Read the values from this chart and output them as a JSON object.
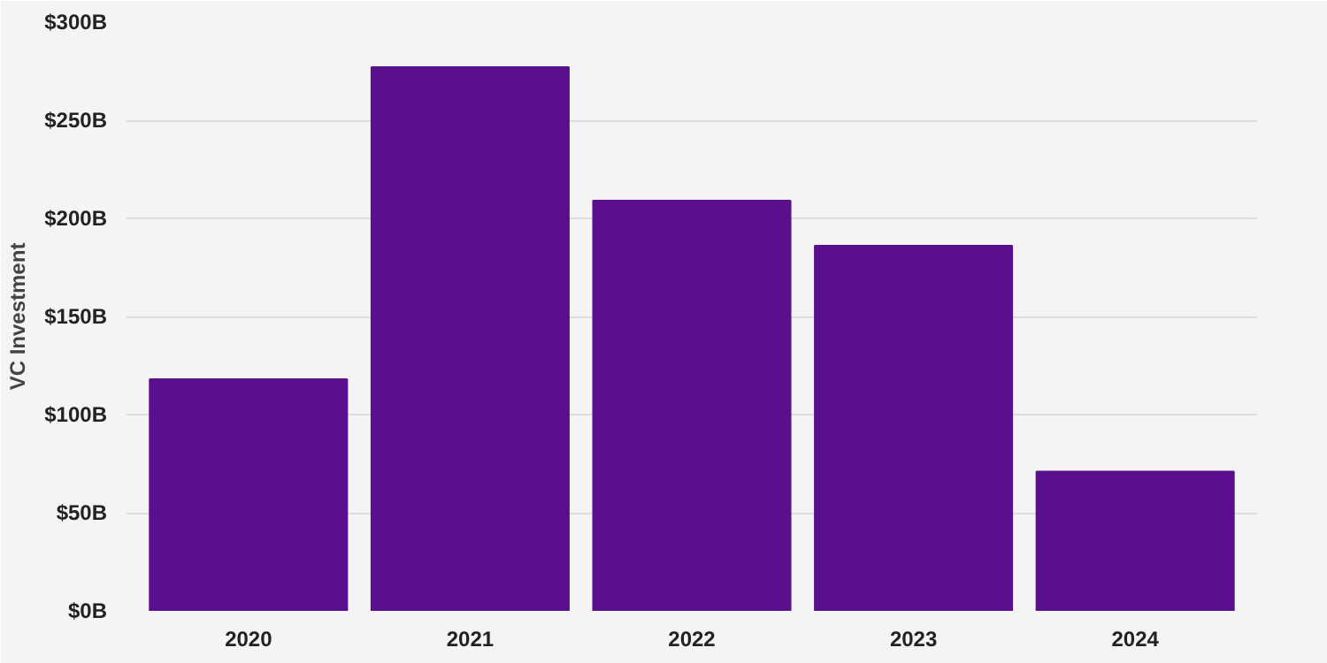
{
  "chart_data": {
    "type": "bar",
    "ylabel": "VC Investment",
    "categories": [
      "2020",
      "2021",
      "2022",
      "2023",
      "2024"
    ],
    "values": [
      118,
      277,
      209,
      186,
      71
    ],
    "color": "#5a0f8c",
    "ylim": [
      0,
      300
    ],
    "yticks": [
      {
        "value": 0,
        "label": "$0B"
      },
      {
        "value": 50,
        "label": "$50B"
      },
      {
        "value": 100,
        "label": "$100B"
      },
      {
        "value": 150,
        "label": "$150B"
      },
      {
        "value": 200,
        "label": "$200B"
      },
      {
        "value": 250,
        "label": "$250B"
      },
      {
        "value": 300,
        "label": "$300B"
      }
    ],
    "grid": "y"
  }
}
